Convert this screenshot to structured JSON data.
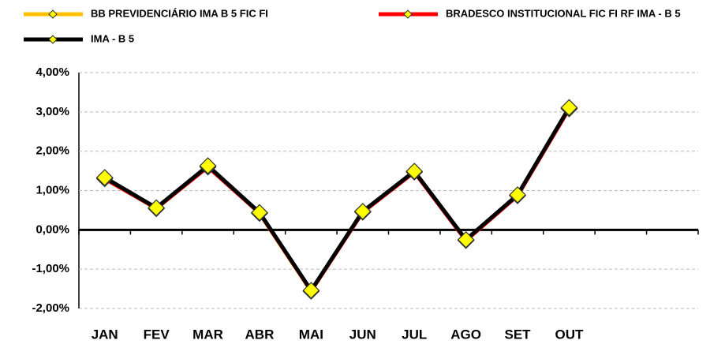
{
  "chart_data": {
    "type": "line",
    "categories": [
      "JAN",
      "FEV",
      "MAR",
      "ABR",
      "MAI",
      "JUN",
      "JUL",
      "AGO",
      "SET",
      "OUT",
      null,
      null
    ],
    "series": [
      {
        "name": "BB PREVIDENCIÁRIO IMA B 5 FIC FI",
        "color": "#FFC000",
        "marker_color": "#FFFF00",
        "values": [
          1.32,
          0.54,
          1.62,
          0.42,
          -1.56,
          0.46,
          1.48,
          -0.26,
          0.88,
          3.1,
          null,
          null
        ]
      },
      {
        "name": "BRADESCO INSTITUCIONAL FIC FI RF IMA - B 5",
        "color": "#FF0000",
        "marker_color": "#FFFF00",
        "values": [
          1.3,
          0.55,
          1.6,
          0.43,
          -1.55,
          0.45,
          1.47,
          -0.27,
          0.87,
          3.08,
          null,
          null
        ]
      },
      {
        "name": "IMA - B 5",
        "color": "#000000",
        "marker_color": "#FFFF00",
        "values": [
          1.33,
          0.56,
          1.63,
          0.44,
          -1.54,
          0.47,
          1.49,
          -0.25,
          0.89,
          3.11,
          null,
          null
        ]
      }
    ],
    "ylim": [
      -2,
      4
    ],
    "yticks": [
      {
        "value": -2,
        "label": "-2,00%"
      },
      {
        "value": -1,
        "label": "-1,00%"
      },
      {
        "value": 0,
        "label": "0,00%"
      },
      {
        "value": 1,
        "label": "1,00%"
      },
      {
        "value": 2,
        "label": "2,00%"
      },
      {
        "value": 3,
        "label": "3,00%"
      },
      {
        "value": 4,
        "label": "4,00%"
      }
    ],
    "grid": true
  }
}
